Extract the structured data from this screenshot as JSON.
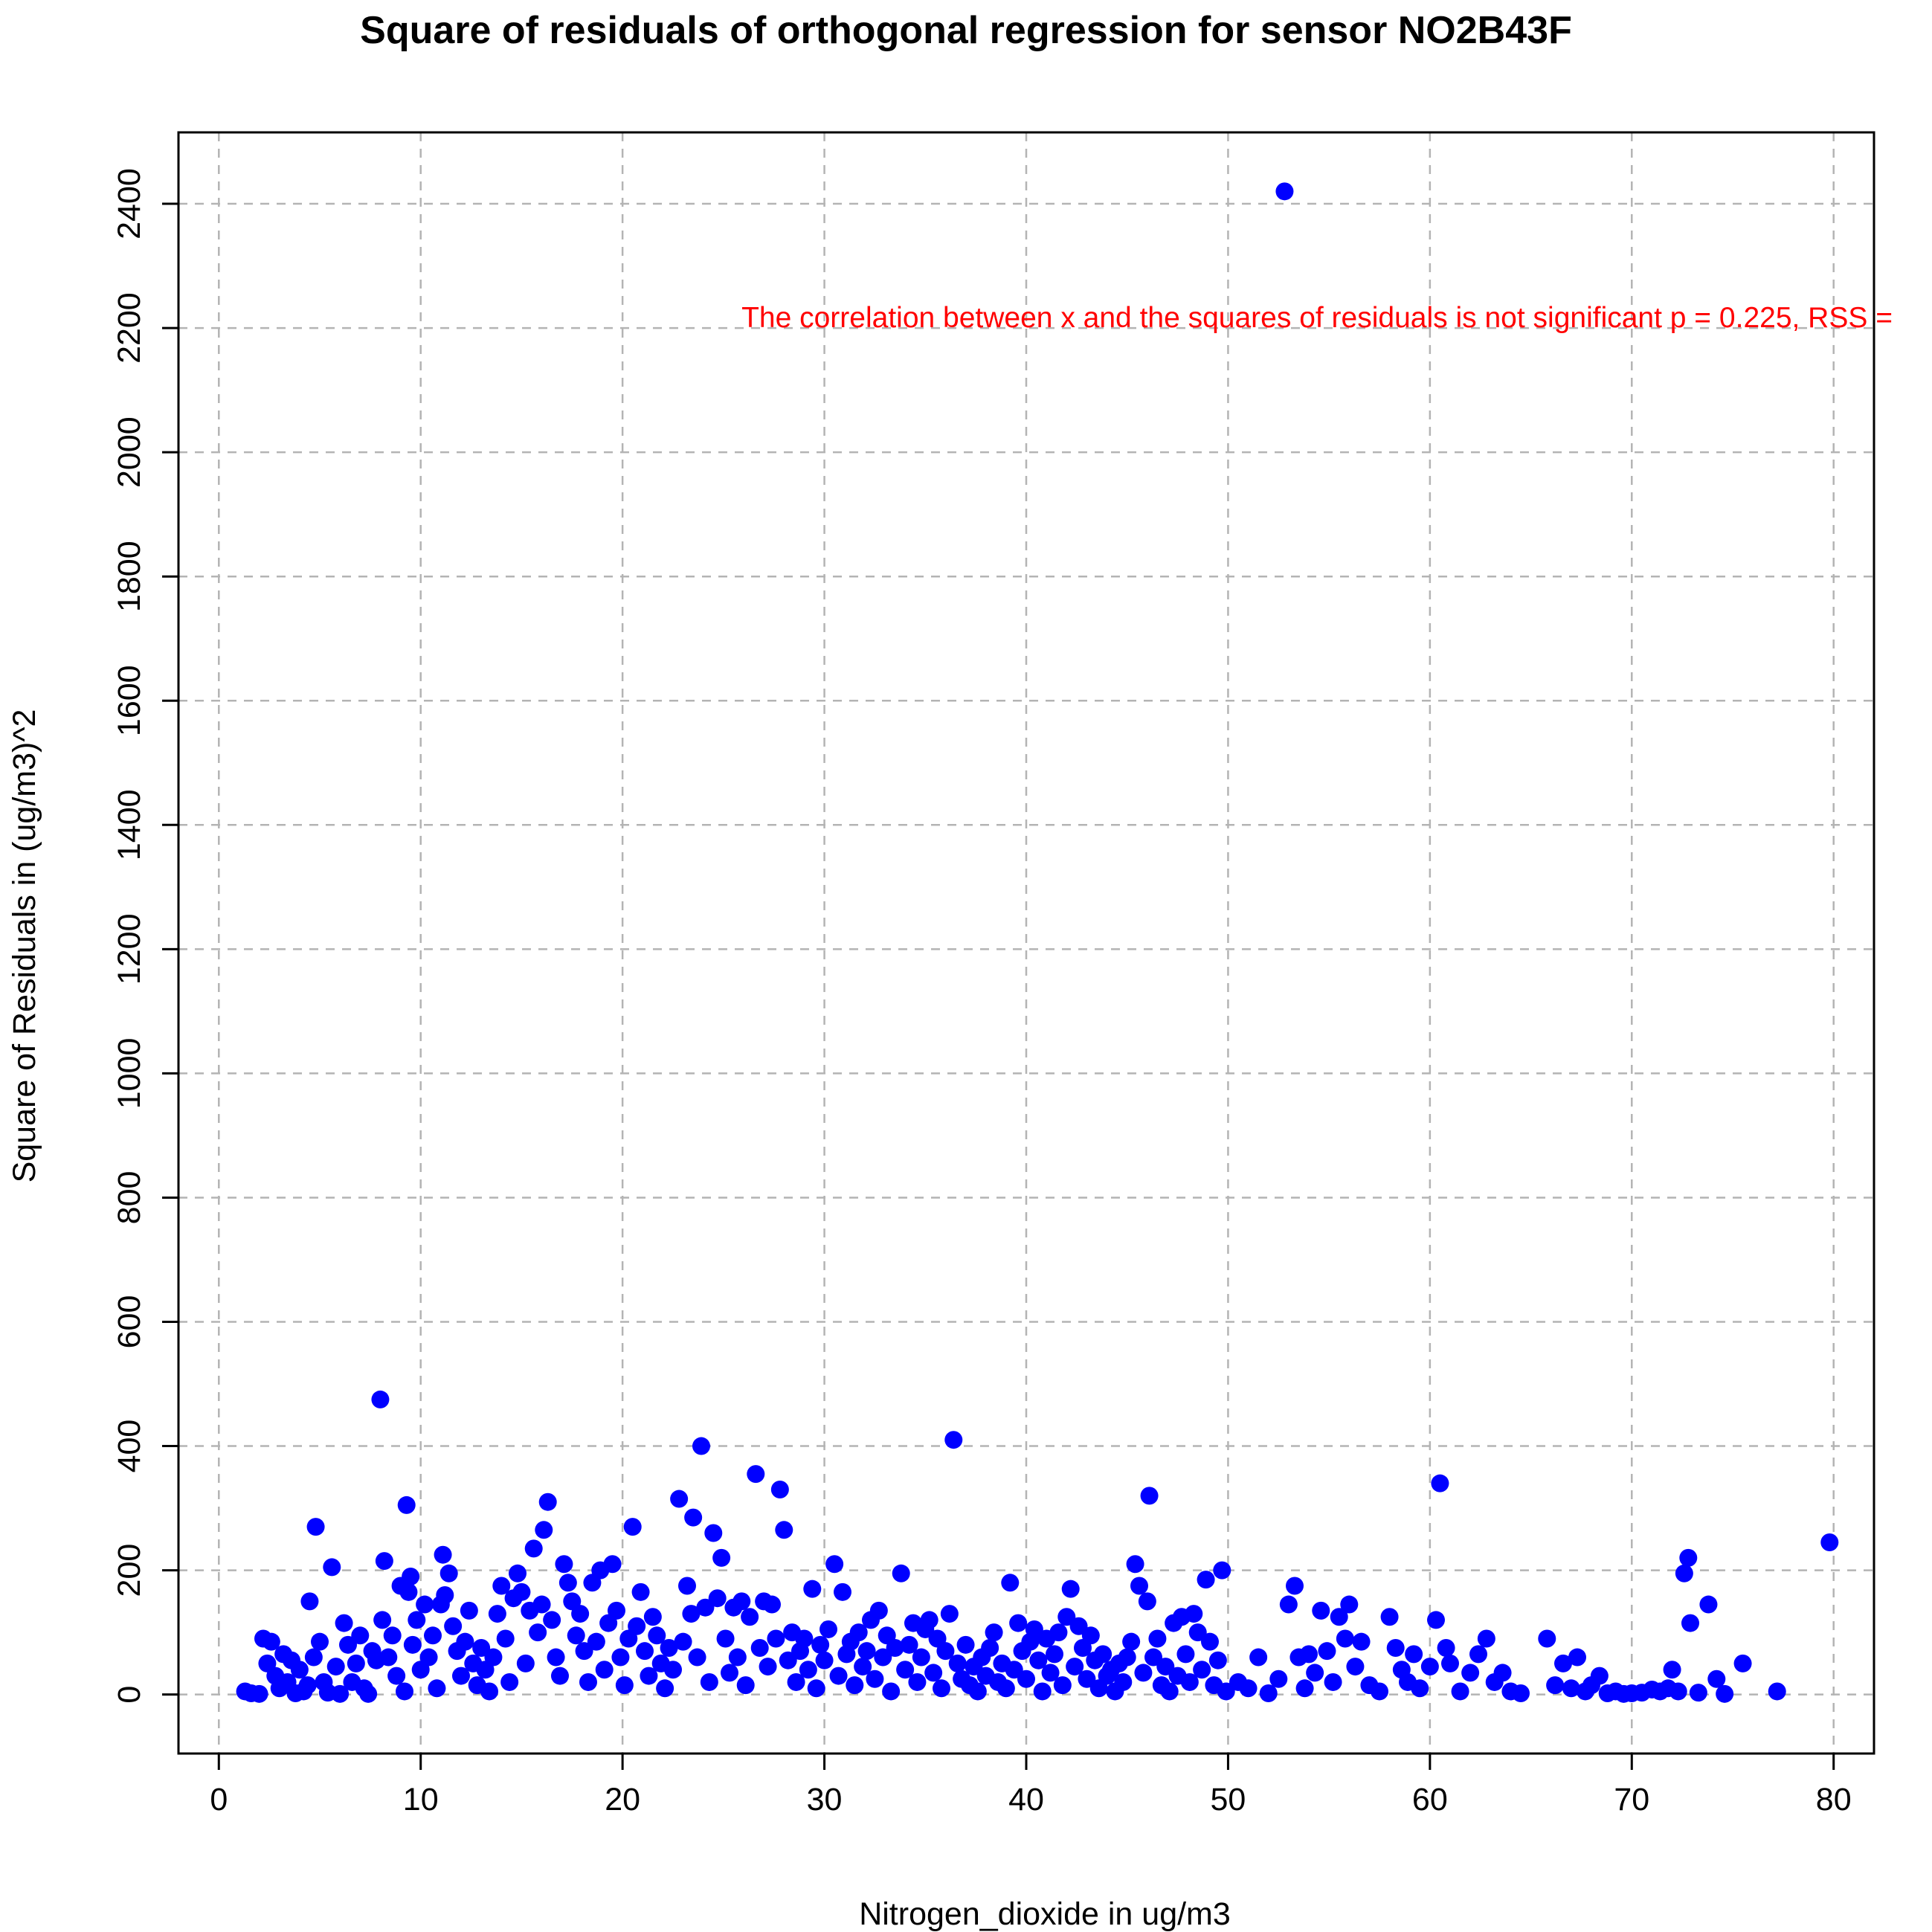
{
  "chart_data": {
    "type": "scatter",
    "title": "Square of residuals of orthogonal regression for sensor NO2B43F",
    "xlabel": "Nitrogen_dioxide in ug/m3",
    "ylabel": "Square of Residuals in (ug/m3)^2",
    "annotation": "The correlation between x and the squares of residuals is not significant p = 0.225, RSS =",
    "xlim": [
      -2,
      82
    ],
    "ylim": [
      -95,
      2515
    ],
    "x_ticks": [
      0,
      10,
      20,
      30,
      40,
      50,
      60,
      70,
      80
    ],
    "y_ticks": [
      0,
      200,
      400,
      600,
      800,
      1000,
      1200,
      1400,
      1600,
      1800,
      2000,
      2200,
      2400
    ],
    "grid": true,
    "point_color": "#0000ff",
    "annotation_color": "#ff0000",
    "series": [
      {
        "values": [
          [
            1.3,
            5
          ],
          [
            1.6,
            2
          ],
          [
            2.0,
            1
          ],
          [
            2.2,
            90
          ],
          [
            2.4,
            50
          ],
          [
            2.6,
            85
          ],
          [
            2.8,
            30
          ],
          [
            3.0,
            10
          ],
          [
            3.2,
            65
          ],
          [
            3.4,
            20
          ],
          [
            3.6,
            55
          ],
          [
            3.8,
            2
          ],
          [
            4.0,
            40
          ],
          [
            4.2,
            5
          ],
          [
            4.4,
            15
          ],
          [
            4.5,
            150
          ],
          [
            4.7,
            60
          ],
          [
            4.8,
            270
          ],
          [
            5.0,
            85
          ],
          [
            5.2,
            20
          ],
          [
            5.4,
            3
          ],
          [
            5.6,
            205
          ],
          [
            5.8,
            45
          ],
          [
            6.0,
            1
          ],
          [
            6.2,
            115
          ],
          [
            6.4,
            80
          ],
          [
            6.6,
            20
          ],
          [
            6.8,
            50
          ],
          [
            7.0,
            95
          ],
          [
            7.2,
            10
          ],
          [
            7.4,
            1
          ],
          [
            7.6,
            70
          ],
          [
            7.8,
            55
          ],
          [
            8.0,
            475
          ],
          [
            8.1,
            120
          ],
          [
            8.2,
            215
          ],
          [
            8.4,
            60
          ],
          [
            8.6,
            95
          ],
          [
            8.8,
            30
          ],
          [
            9.0,
            175
          ],
          [
            9.2,
            5
          ],
          [
            9.3,
            305
          ],
          [
            9.4,
            165
          ],
          [
            9.5,
            190
          ],
          [
            9.6,
            80
          ],
          [
            9.8,
            120
          ],
          [
            10.0,
            40
          ],
          [
            10.2,
            145
          ],
          [
            10.4,
            60
          ],
          [
            10.6,
            95
          ],
          [
            10.8,
            10
          ],
          [
            11.0,
            145
          ],
          [
            11.1,
            225
          ],
          [
            11.2,
            160
          ],
          [
            11.4,
            195
          ],
          [
            11.6,
            110
          ],
          [
            11.8,
            70
          ],
          [
            12.0,
            30
          ],
          [
            12.2,
            85
          ],
          [
            12.4,
            135
          ],
          [
            12.6,
            50
          ],
          [
            12.8,
            15
          ],
          [
            13.0,
            75
          ],
          [
            13.2,
            40
          ],
          [
            13.4,
            5
          ],
          [
            13.6,
            60
          ],
          [
            13.8,
            130
          ],
          [
            14.0,
            175
          ],
          [
            14.2,
            90
          ],
          [
            14.4,
            20
          ],
          [
            14.6,
            155
          ],
          [
            14.8,
            195
          ],
          [
            15.0,
            165
          ],
          [
            15.2,
            50
          ],
          [
            15.4,
            135
          ],
          [
            15.6,
            235
          ],
          [
            15.8,
            100
          ],
          [
            16.0,
            145
          ],
          [
            16.1,
            265
          ],
          [
            16.3,
            310
          ],
          [
            16.5,
            120
          ],
          [
            16.7,
            60
          ],
          [
            16.9,
            30
          ],
          [
            17.1,
            210
          ],
          [
            17.3,
            180
          ],
          [
            17.5,
            150
          ],
          [
            17.7,
            95
          ],
          [
            17.9,
            130
          ],
          [
            18.1,
            70
          ],
          [
            18.3,
            20
          ],
          [
            18.5,
            180
          ],
          [
            18.7,
            85
          ],
          [
            18.9,
            200
          ],
          [
            19.1,
            40
          ],
          [
            19.3,
            115
          ],
          [
            19.5,
            210
          ],
          [
            19.7,
            135
          ],
          [
            19.9,
            60
          ],
          [
            20.1,
            15
          ],
          [
            20.3,
            90
          ],
          [
            20.5,
            270
          ],
          [
            20.7,
            110
          ],
          [
            20.9,
            165
          ],
          [
            21.1,
            70
          ],
          [
            21.3,
            30
          ],
          [
            21.5,
            125
          ],
          [
            21.7,
            95
          ],
          [
            21.9,
            50
          ],
          [
            22.1,
            10
          ],
          [
            22.3,
            75
          ],
          [
            22.5,
            40
          ],
          [
            22.8,
            315
          ],
          [
            23.0,
            85
          ],
          [
            23.2,
            175
          ],
          [
            23.4,
            130
          ],
          [
            23.5,
            285
          ],
          [
            23.7,
            60
          ],
          [
            23.9,
            400
          ],
          [
            24.1,
            140
          ],
          [
            24.3,
            20
          ],
          [
            24.5,
            260
          ],
          [
            24.7,
            155
          ],
          [
            24.9,
            220
          ],
          [
            25.1,
            90
          ],
          [
            25.3,
            35
          ],
          [
            25.5,
            140
          ],
          [
            25.7,
            60
          ],
          [
            25.9,
            150
          ],
          [
            26.1,
            15
          ],
          [
            26.3,
            125
          ],
          [
            26.6,
            355
          ],
          [
            26.8,
            75
          ],
          [
            27.0,
            150
          ],
          [
            27.2,
            45
          ],
          [
            27.4,
            145
          ],
          [
            27.6,
            90
          ],
          [
            27.8,
            330
          ],
          [
            28.0,
            265
          ],
          [
            28.2,
            55
          ],
          [
            28.4,
            100
          ],
          [
            28.6,
            20
          ],
          [
            28.8,
            70
          ],
          [
            29.0,
            90
          ],
          [
            29.2,
            40
          ],
          [
            29.4,
            170
          ],
          [
            29.6,
            10
          ],
          [
            29.8,
            80
          ],
          [
            30.0,
            55
          ],
          [
            30.2,
            105
          ],
          [
            30.5,
            210
          ],
          [
            30.7,
            30
          ],
          [
            30.9,
            165
          ],
          [
            31.1,
            65
          ],
          [
            31.3,
            85
          ],
          [
            31.5,
            15
          ],
          [
            31.7,
            100
          ],
          [
            31.9,
            45
          ],
          [
            32.1,
            70
          ],
          [
            32.3,
            120
          ],
          [
            32.5,
            25
          ],
          [
            32.7,
            135
          ],
          [
            32.9,
            60
          ],
          [
            33.1,
            95
          ],
          [
            33.3,
            5
          ],
          [
            33.5,
            75
          ],
          [
            33.8,
            195
          ],
          [
            34.0,
            40
          ],
          [
            34.2,
            80
          ],
          [
            34.4,
            115
          ],
          [
            34.6,
            20
          ],
          [
            34.8,
            60
          ],
          [
            35.0,
            105
          ],
          [
            35.2,
            120
          ],
          [
            35.4,
            35
          ],
          [
            35.6,
            90
          ],
          [
            35.8,
            10
          ],
          [
            36.0,
            70
          ],
          [
            36.2,
            130
          ],
          [
            36.4,
            410
          ],
          [
            36.6,
            50
          ],
          [
            36.8,
            25
          ],
          [
            37.0,
            80
          ],
          [
            37.2,
            15
          ],
          [
            37.4,
            45
          ],
          [
            37.6,
            5
          ],
          [
            37.8,
            60
          ],
          [
            38.0,
            30
          ],
          [
            38.2,
            75
          ],
          [
            38.4,
            100
          ],
          [
            38.6,
            20
          ],
          [
            38.8,
            50
          ],
          [
            39.0,
            10
          ],
          [
            39.2,
            180
          ],
          [
            39.4,
            40
          ],
          [
            39.6,
            115
          ],
          [
            39.8,
            70
          ],
          [
            40.0,
            25
          ],
          [
            40.2,
            85
          ],
          [
            40.4,
            105
          ],
          [
            40.6,
            55
          ],
          [
            40.8,
            5
          ],
          [
            41.0,
            90
          ],
          [
            41.2,
            35
          ],
          [
            41.4,
            65
          ],
          [
            41.6,
            100
          ],
          [
            41.8,
            15
          ],
          [
            42.0,
            125
          ],
          [
            42.2,
            170
          ],
          [
            42.4,
            45
          ],
          [
            42.6,
            110
          ],
          [
            42.8,
            75
          ],
          [
            43.0,
            25
          ],
          [
            43.2,
            95
          ],
          [
            43.4,
            55
          ],
          [
            43.6,
            10
          ],
          [
            43.8,
            65
          ],
          [
            44.0,
            30
          ],
          [
            44.2,
            40
          ],
          [
            44.4,
            5
          ],
          [
            44.6,
            50
          ],
          [
            44.8,
            20
          ],
          [
            45.0,
            60
          ],
          [
            45.2,
            85
          ],
          [
            45.4,
            210
          ],
          [
            45.6,
            175
          ],
          [
            45.8,
            35
          ],
          [
            46.0,
            150
          ],
          [
            46.1,
            320
          ],
          [
            46.3,
            60
          ],
          [
            46.5,
            90
          ],
          [
            46.7,
            15
          ],
          [
            46.9,
            45
          ],
          [
            47.1,
            5
          ],
          [
            47.3,
            115
          ],
          [
            47.5,
            30
          ],
          [
            47.7,
            125
          ],
          [
            47.9,
            65
          ],
          [
            48.1,
            20
          ],
          [
            48.3,
            130
          ],
          [
            48.5,
            100
          ],
          [
            48.7,
            40
          ],
          [
            48.9,
            185
          ],
          [
            49.1,
            85
          ],
          [
            49.3,
            15
          ],
          [
            49.5,
            55
          ],
          [
            49.7,
            200
          ],
          [
            49.9,
            5
          ],
          [
            50.5,
            20
          ],
          [
            51.0,
            10
          ],
          [
            51.5,
            60
          ],
          [
            52.0,
            2
          ],
          [
            52.5,
            25
          ],
          [
            52.8,
            2420
          ],
          [
            53.0,
            145
          ],
          [
            53.3,
            175
          ],
          [
            53.5,
            60
          ],
          [
            53.8,
            10
          ],
          [
            54.0,
            65
          ],
          [
            54.3,
            35
          ],
          [
            54.6,
            135
          ],
          [
            54.9,
            70
          ],
          [
            55.2,
            20
          ],
          [
            55.5,
            125
          ],
          [
            55.8,
            90
          ],
          [
            56.0,
            145
          ],
          [
            56.3,
            45
          ],
          [
            56.6,
            85
          ],
          [
            57.0,
            15
          ],
          [
            57.5,
            5
          ],
          [
            58.0,
            125
          ],
          [
            58.3,
            75
          ],
          [
            58.6,
            40
          ],
          [
            58.9,
            20
          ],
          [
            59.2,
            65
          ],
          [
            59.5,
            10
          ],
          [
            60.0,
            45
          ],
          [
            60.3,
            120
          ],
          [
            60.5,
            340
          ],
          [
            60.8,
            75
          ],
          [
            61.0,
            50
          ],
          [
            61.5,
            5
          ],
          [
            62.0,
            35
          ],
          [
            62.4,
            65
          ],
          [
            62.8,
            90
          ],
          [
            63.2,
            20
          ],
          [
            63.6,
            35
          ],
          [
            64.0,
            5
          ],
          [
            64.5,
            2
          ],
          [
            65.8,
            90
          ],
          [
            66.2,
            15
          ],
          [
            66.6,
            50
          ],
          [
            67.0,
            10
          ],
          [
            67.3,
            60
          ],
          [
            67.7,
            5
          ],
          [
            68.0,
            15
          ],
          [
            68.4,
            30
          ],
          [
            68.8,
            2
          ],
          [
            69.2,
            5
          ],
          [
            69.6,
            1
          ],
          [
            70.0,
            2
          ],
          [
            70.5,
            3
          ],
          [
            71.0,
            8
          ],
          [
            71.4,
            5
          ],
          [
            71.8,
            10
          ],
          [
            72.0,
            40
          ],
          [
            72.3,
            5
          ],
          [
            72.6,
            195
          ],
          [
            72.8,
            220
          ],
          [
            72.9,
            115
          ],
          [
            73.3,
            3
          ],
          [
            73.8,
            145
          ],
          [
            74.2,
            25
          ],
          [
            74.6,
            1
          ],
          [
            75.5,
            50
          ],
          [
            77.2,
            5
          ],
          [
            79.8,
            245
          ]
        ]
      }
    ]
  }
}
